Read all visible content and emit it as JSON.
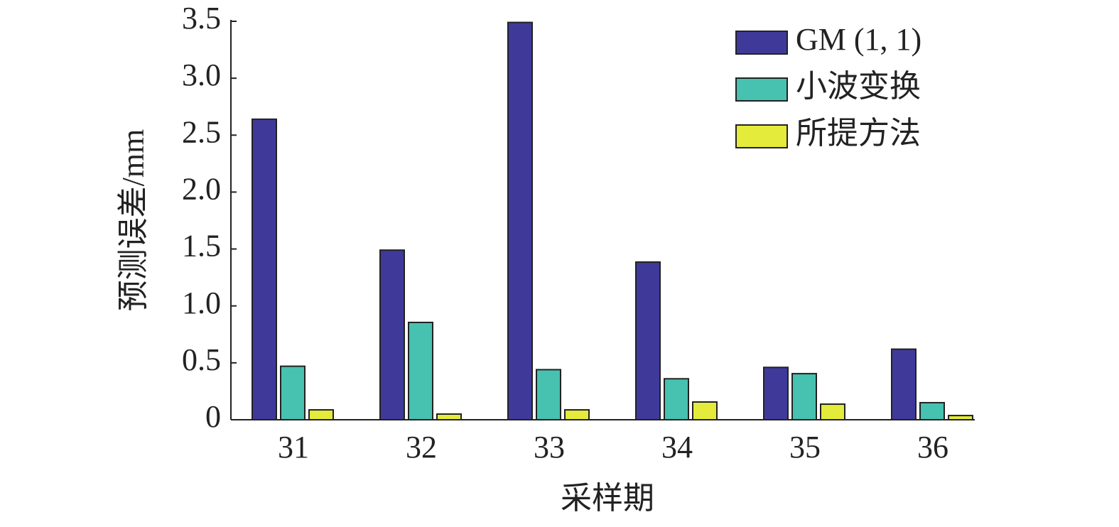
{
  "chart_data": {
    "type": "bar",
    "x_label": "采样期",
    "y_label": "预测误差/mm",
    "categories": [
      "31",
      "32",
      "33",
      "34",
      "35",
      "36"
    ],
    "series": [
      {
        "name": "GM (1, 1)",
        "color": "#3f3a9a",
        "values": [
          2.64,
          1.49,
          3.49,
          1.385,
          0.46,
          0.62
        ]
      },
      {
        "name": "小波变换",
        "color": "#47c1b0",
        "values": [
          0.47,
          0.855,
          0.44,
          0.36,
          0.405,
          0.15
        ]
      },
      {
        "name": "所提方法",
        "color": "#e4eb3a",
        "values": [
          0.087,
          0.05,
          0.087,
          0.156,
          0.137,
          0.037
        ]
      }
    ],
    "ylim": [
      0,
      3.5
    ],
    "yticks": [
      0,
      0.5,
      {
        "value": 1,
        "label": "1.0"
      },
      1.5,
      {
        "value": 2,
        "label": "2.0"
      },
      2.5,
      {
        "value": 3,
        "label": "3.0"
      },
      3.5
    ],
    "legend": "upper right"
  }
}
